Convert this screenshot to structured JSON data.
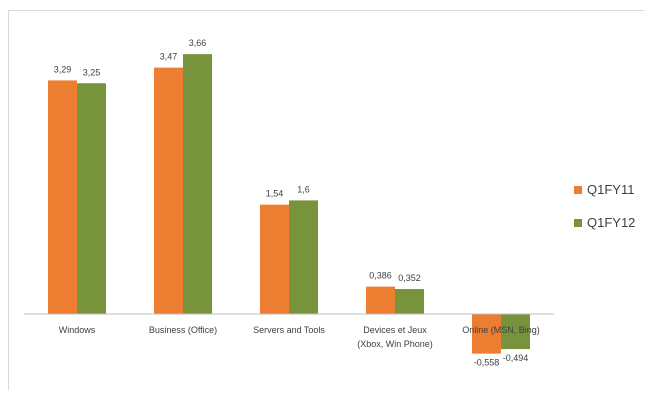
{
  "chart_data": {
    "type": "bar",
    "categories": [
      [
        "Windows"
      ],
      [
        "Business (Office)"
      ],
      [
        "Servers and Tools"
      ],
      [
        "Devices et Jeux",
        "(Xbox, Win Phone)"
      ],
      [
        "Online (MSN, Bing)"
      ]
    ],
    "series": [
      {
        "name": "Q1FY11",
        "color": "#ed7d31",
        "values": [
          3.29,
          3.47,
          1.54,
          0.386,
          -0.558
        ],
        "labels": [
          "3,29",
          "3,47",
          "1,54",
          "0,386",
          "-0,558"
        ]
      },
      {
        "name": "Q1FY12",
        "color": "#77933c",
        "values": [
          3.25,
          3.66,
          1.6,
          0.352,
          -0.494
        ],
        "labels": [
          "3,25",
          "3,66",
          "1,6",
          "0,352",
          "-0,494"
        ]
      }
    ],
    "ylim": [
      -0.75,
      4.0
    ],
    "grid": false,
    "legend_position": "right"
  }
}
